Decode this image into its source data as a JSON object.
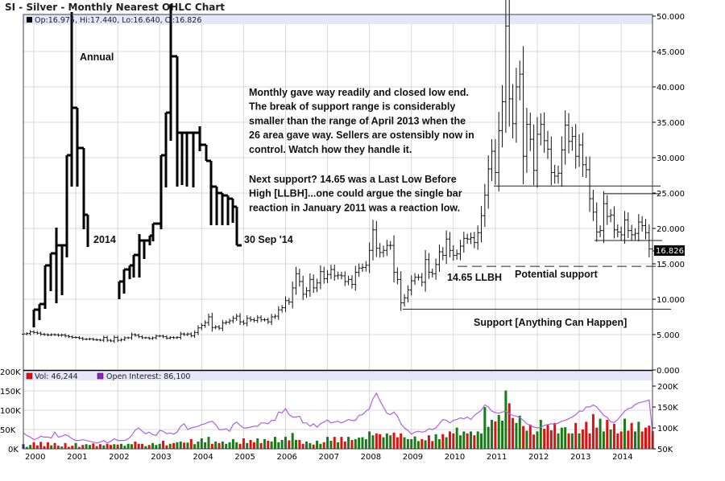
{
  "chart_data": {
    "type": "ohlc",
    "title": "SI - Silver - Monthly Nearest OHLC Chart",
    "legend": {
      "price": "Op:16.975, Hi:17.440, Lo:16.640, Cl:16.826",
      "volume": "Vol: 46,244",
      "open_interest": "Open Interest: 86,100"
    },
    "last_price_label": "16.826",
    "start_month": "1999-10",
    "x_tick_labels": [
      "2000",
      "2001",
      "2002",
      "2003",
      "2004",
      "2005",
      "2006",
      "2007",
      "2008",
      "2009",
      "2010",
      "2011",
      "2012",
      "2013",
      "2014"
    ],
    "price_axis": {
      "ylim": [
        0,
        50
      ],
      "tick_labels": [
        "0.000",
        "5.000",
        "10.000",
        "15.000",
        "20.000",
        "25.000",
        "30.000",
        "35.000",
        "40.000",
        "45.000",
        "50.000"
      ]
    },
    "volume_axis": {
      "ylim": [
        0,
        200
      ],
      "unit": "K",
      "tick_labels": [
        "0K",
        "50K",
        "100K",
        "150K",
        "200K"
      ]
    },
    "oi_axis": {
      "ylim": [
        50,
        200
      ],
      "unit": "K",
      "tick_labels": [
        "50K",
        "100K",
        "150K",
        "200K"
      ]
    },
    "monthly_close": [
      5.1,
      5.15,
      5.4,
      5.3,
      5.2,
      5.05,
      5.0,
      4.95,
      5.0,
      4.98,
      4.9,
      4.95,
      4.8,
      4.7,
      4.6,
      4.6,
      4.5,
      4.35,
      4.35,
      4.4,
      4.3,
      4.25,
      4.2,
      4.6,
      4.2,
      4.1,
      4.6,
      4.2,
      4.3,
      4.55,
      4.55,
      5.0,
      4.9,
      4.7,
      4.55,
      4.55,
      4.45,
      4.55,
      4.8,
      4.8,
      4.7,
      4.5,
      4.6,
      4.55,
      4.6,
      5.1,
      5.0,
      5.1,
      4.85,
      5.3,
      5.95,
      6.3,
      6.7,
      7.5,
      6.0,
      6.1,
      5.9,
      6.65,
      6.75,
      6.95,
      7.3,
      7.6,
      6.8,
      6.6,
      7.3,
      7.1,
      7.0,
      7.4,
      7.1,
      7.1,
      6.8,
      7.5,
      7.6,
      8.5,
      8.8,
      9.8,
      9.6,
      11.6,
      13.6,
      12.5,
      10.7,
      11.2,
      12.8,
      11.6,
      12.3,
      13.9,
      12.9,
      13.5,
      14.2,
      13.3,
      13.4,
      13.3,
      12.5,
      12.8,
      12.1,
      13.8,
      14.4,
      14.5,
      14.8,
      16.9,
      19.8,
      17.2,
      16.6,
      16.9,
      17.6,
      17.6,
      13.8,
      12.8,
      9.5,
      10.2,
      11.3,
      12.6,
      13.1,
      13.1,
      12.4,
      15.6,
      13.8,
      13.6,
      14.9,
      16.7,
      16.2,
      18.5,
      16.9,
      16.2,
      16.4,
      17.5,
      18.6,
      18.5,
      18.7,
      18.0,
      19.4,
      21.8,
      24.7,
      28.4,
      30.9,
      27.9,
      33.8,
      37.9,
      48.6,
      38.3,
      34.8,
      40.0,
      41.8,
      30.2,
      34.7,
      32.6,
      28.2,
      33.3,
      34.7,
      32.4,
      31.2,
      27.9,
      27.4,
      27.8,
      31.1,
      34.6,
      32.3,
      33.0,
      30.2,
      31.8,
      29.0,
      28.3,
      24.2,
      22.3,
      19.5,
      19.7,
      23.5,
      21.7,
      21.9,
      19.8,
      19.5,
      19.1,
      21.2,
      19.7,
      19.1,
      19.3,
      20.9,
      20.4,
      19.4,
      17.1,
      16.826
    ],
    "monthly_volume_k": [
      12,
      5,
      10,
      17,
      9,
      18,
      7,
      17,
      9,
      15,
      8,
      6,
      15,
      5,
      8,
      15,
      5,
      10,
      12,
      10,
      14,
      7,
      12,
      9,
      13,
      10,
      12,
      11,
      13,
      8,
      13,
      12,
      19,
      13,
      13,
      7,
      10,
      15,
      10,
      13,
      21,
      9,
      13,
      15,
      17,
      19,
      16,
      16,
      25,
      12,
      19,
      27,
      17,
      31,
      13,
      19,
      15,
      19,
      13,
      17,
      25,
      17,
      13,
      27,
      15,
      23,
      17,
      27,
      15,
      25,
      21,
      19,
      31,
      17,
      23,
      31,
      22,
      41,
      23,
      23,
      13,
      19,
      15,
      11,
      21,
      13,
      17,
      31,
      21,
      31,
      17,
      31,
      19,
      31,
      23,
      25,
      29,
      30,
      25,
      45,
      35,
      40,
      38,
      30,
      40,
      35,
      42,
      30,
      40,
      30,
      25,
      25,
      32,
      20,
      25,
      22,
      35,
      20,
      38,
      25,
      38,
      30,
      45,
      40,
      55,
      35,
      45,
      40,
      45,
      35,
      45,
      40,
      108,
      57,
      75,
      71,
      88,
      73,
      151,
      118,
      80,
      67,
      86,
      59,
      47,
      63,
      37,
      45,
      75,
      52,
      62,
      48,
      67,
      40,
      55,
      56,
      40,
      40,
      67,
      40,
      50,
      70,
      40,
      90,
      55,
      78,
      45,
      75,
      50,
      65,
      40,
      45,
      78,
      47,
      67,
      45,
      70,
      45,
      55,
      60,
      46.244
    ],
    "monthly_open_interest_k": [
      88,
      82,
      78,
      72,
      75,
      80,
      78,
      78,
      76,
      90,
      78,
      80,
      84,
      80,
      74,
      70,
      70,
      72,
      70,
      68,
      66,
      64,
      66,
      70,
      64,
      68,
      74,
      70,
      70,
      70,
      74,
      82,
      95,
      100,
      92,
      86,
      90,
      84,
      82,
      94,
      92,
      86,
      88,
      85,
      90,
      104,
      110,
      96,
      100,
      102,
      104,
      108,
      110,
      114,
      116,
      108,
      96,
      96,
      98,
      92,
      108,
      114,
      106,
      100,
      100,
      102,
      104,
      104,
      112,
      112,
      110,
      118,
      118,
      138,
      136,
      146,
      132,
      126,
      126,
      128,
      112,
      112,
      104,
      110,
      102,
      110,
      114,
      119,
      112,
      114,
      116,
      112,
      116,
      120,
      118,
      118,
      130,
      132,
      140,
      146,
      170,
      183,
      165,
      150,
      135,
      132,
      138,
      128,
      110,
      100,
      94,
      85,
      90,
      92,
      90,
      92,
      98,
      96,
      100,
      110,
      120,
      118,
      112,
      118,
      120,
      124,
      122,
      126,
      120,
      130,
      136,
      142,
      155,
      150,
      140,
      137,
      135,
      138,
      140,
      134,
      130,
      128,
      125,
      118,
      110,
      106,
      102,
      100,
      102,
      106,
      108,
      110,
      108,
      112,
      116,
      118,
      122,
      126,
      132,
      140,
      140,
      150,
      150,
      155,
      150,
      140,
      130,
      125,
      115,
      113,
      120,
      130,
      140,
      146,
      148,
      156,
      160,
      162,
      164,
      167,
      86.1
    ]
  },
  "annotations": {
    "annual_label": "Annual",
    "year_label": "2014",
    "date_label": "30 Sep '14",
    "commentary": [
      "Monthly gave way readily and closed low end.",
      "The break of support range is considerably",
      "smaller than the range of April 2013 when the",
      "26 area gave way.  Sellers are ostensibly now in",
      "control.  Watch how they handle it."
    ],
    "commentary2": [
      "Next support?  14.65 was a Last Low Before",
      "High [LLBH]...one could argue the single bar",
      "reaction in January 2011 was a reaction low."
    ],
    "llbh_label": "14.65 LLBH",
    "potential_label": "Potential support",
    "support_label": "Support  [Anything Can Happen]",
    "levels": {
      "upper_range": 26,
      "april_2013": 24.9,
      "range_low": 18.3,
      "llbh": 14.65,
      "major_support": 8.6
    }
  },
  "colors": {
    "up": "#1a7a1a",
    "down": "#e01010",
    "first": "#1a1a80",
    "oi": "#b060e8",
    "legend_band": "#e6e6fa",
    "grid": "#d8d8d8"
  }
}
